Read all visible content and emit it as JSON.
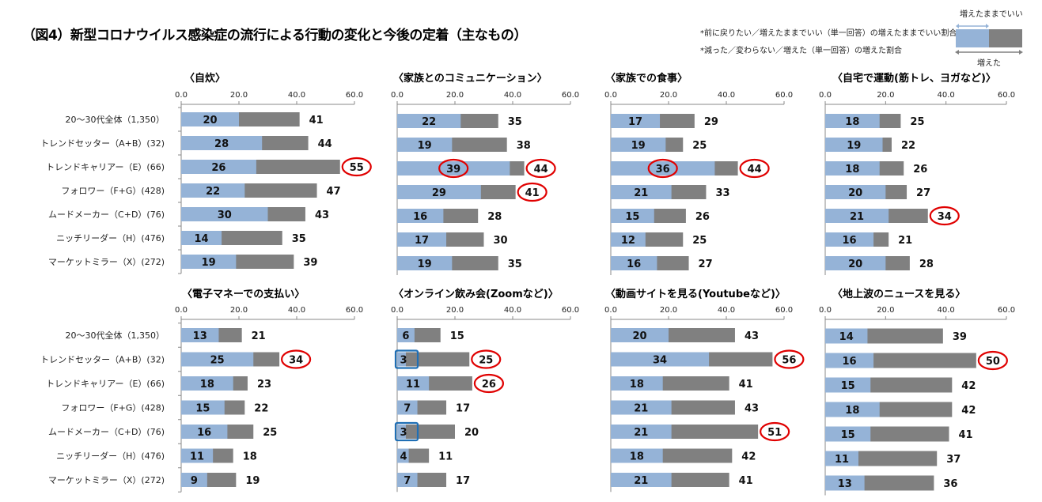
{
  "title": "（図4）新型コロナウイルス感染症の流行による行動の変化と今後の定着（主なもの）",
  "notes": [
    "*前に戻りたい／増えたままでいい（単一回答）の増えたままでいい割合",
    "*減った／変わらない／増えた（単一回答）の増えた割合"
  ],
  "legend": {
    "top_label": "増えたままでいい",
    "bottom_label": "増えた"
  },
  "colors": {
    "keep": "#95b3d7",
    "increased": "#808080",
    "highlight_circle": "#e00000",
    "highlight_box": "#1f6fb5"
  },
  "chart_data": [
    {
      "type": "bar",
      "title": "〈自炊〉",
      "categories": [
        "20～30代全体（1,350）",
        "トレンドセッター（A+B）(32)",
        "トレンドキャリアー（E）(66)",
        "フォロワー（F+G）(428)",
        "ムードメーカー（C+D）(76)",
        "ニッチリーダー（H）(476)",
        "マーケットミラー（X）(272)"
      ],
      "series": [
        {
          "name": "増えたままでいい",
          "values": [
            20,
            28,
            26,
            22,
            30,
            14,
            19
          ]
        },
        {
          "name": "増えた",
          "values": [
            41,
            44,
            55,
            47,
            43,
            35,
            39
          ]
        }
      ],
      "xlim": [
        0,
        60
      ],
      "ticks": [
        "0.0",
        "20.0",
        "40.0",
        "60.0"
      ],
      "circled_total": [
        2
      ],
      "circled_keep": [],
      "boxed_keep": []
    },
    {
      "type": "bar",
      "title": "〈家族とのコミュニケーション〉",
      "series": [
        {
          "name": "増えたままでいい",
          "values": [
            22,
            19,
            39,
            29,
            16,
            17,
            19
          ]
        },
        {
          "name": "増えた",
          "values": [
            35,
            38,
            44,
            41,
            28,
            30,
            35
          ]
        }
      ],
      "xlim": [
        0,
        60
      ],
      "ticks": [
        "0.0",
        "20.0",
        "40.0",
        "60.0"
      ],
      "circled_total": [
        2,
        3
      ],
      "circled_keep": [
        2
      ],
      "boxed_keep": []
    },
    {
      "type": "bar",
      "title": "〈家族での食事〉",
      "series": [
        {
          "name": "増えたままでいい",
          "values": [
            17,
            19,
            36,
            21,
            15,
            12,
            16
          ]
        },
        {
          "name": "増えた",
          "values": [
            29,
            25,
            44,
            33,
            26,
            25,
            27
          ]
        }
      ],
      "xlim": [
        0,
        60
      ],
      "ticks": [
        "0.0",
        "20.0",
        "40.0",
        "60.0"
      ],
      "circled_total": [
        2
      ],
      "circled_keep": [
        2
      ],
      "boxed_keep": []
    },
    {
      "type": "bar",
      "title": "〈自宅で運動(筋トレ、ヨガなど)〉",
      "series": [
        {
          "name": "増えたままでいい",
          "values": [
            18,
            19,
            18,
            20,
            21,
            16,
            20
          ]
        },
        {
          "name": "増えた",
          "values": [
            25,
            22,
            26,
            27,
            34,
            21,
            28
          ]
        }
      ],
      "xlim": [
        0,
        60
      ],
      "ticks": [
        "0.0",
        "20.0",
        "40.0",
        "60.0"
      ],
      "circled_total": [
        4
      ],
      "circled_keep": [],
      "boxed_keep": []
    },
    {
      "type": "bar",
      "title": "〈電子マネーでの支払い〉",
      "categories": [
        "20～30代全体（1,350）",
        "トレンドセッター（A+B）(32)",
        "トレンドキャリアー（E）(66)",
        "フォロワー（F+G）(428)",
        "ムードメーカー（C+D）(76)",
        "ニッチリーダー（H）(476)",
        "マーケットミラー（X）(272)"
      ],
      "series": [
        {
          "name": "増えたままでいい",
          "values": [
            13,
            25,
            18,
            15,
            16,
            11,
            9
          ]
        },
        {
          "name": "増えた",
          "values": [
            21,
            34,
            23,
            22,
            25,
            18,
            19
          ]
        }
      ],
      "xlim": [
        0,
        60
      ],
      "ticks": [
        "0.0",
        "20.0",
        "40.0",
        "60.0"
      ],
      "circled_total": [
        1
      ],
      "circled_keep": [],
      "boxed_keep": []
    },
    {
      "type": "bar",
      "title": "〈オンライン飲み会(Zoomなど)〉",
      "series": [
        {
          "name": "増えたままでいい",
          "values": [
            6,
            3,
            11,
            7,
            3,
            4,
            7
          ]
        },
        {
          "name": "増えた",
          "values": [
            15,
            25,
            26,
            17,
            20,
            11,
            17
          ]
        }
      ],
      "xlim": [
        0,
        60
      ],
      "ticks": [
        "0.0",
        "20.0",
        "40.0",
        "60.0"
      ],
      "circled_total": [
        1,
        2
      ],
      "circled_keep": [],
      "boxed_keep": [
        1,
        4
      ]
    },
    {
      "type": "bar",
      "title": "〈動画サイトを見る(Youtubeなど)〉",
      "series": [
        {
          "name": "増えたままでいい",
          "values": [
            20,
            34,
            18,
            21,
            21,
            18,
            21
          ]
        },
        {
          "name": "増えた",
          "values": [
            43,
            56,
            41,
            43,
            51,
            42,
            41
          ]
        }
      ],
      "xlim": [
        0,
        60
      ],
      "ticks": [
        "0.0",
        "20.0",
        "40.0",
        "60.0"
      ],
      "circled_total": [
        1,
        4
      ],
      "circled_keep": [],
      "boxed_keep": []
    },
    {
      "type": "bar",
      "title": "〈地上波のニュースを見る〉",
      "series": [
        {
          "name": "増えたままでいい",
          "values": [
            14,
            16,
            15,
            18,
            15,
            11,
            13
          ]
        },
        {
          "name": "増えた",
          "values": [
            39,
            50,
            42,
            42,
            41,
            37,
            36
          ]
        }
      ],
      "xlim": [
        0,
        60
      ],
      "ticks": [
        "0.0",
        "20.0",
        "40.0",
        "60.0"
      ],
      "circled_total": [
        1
      ],
      "circled_keep": [],
      "boxed_keep": []
    }
  ]
}
